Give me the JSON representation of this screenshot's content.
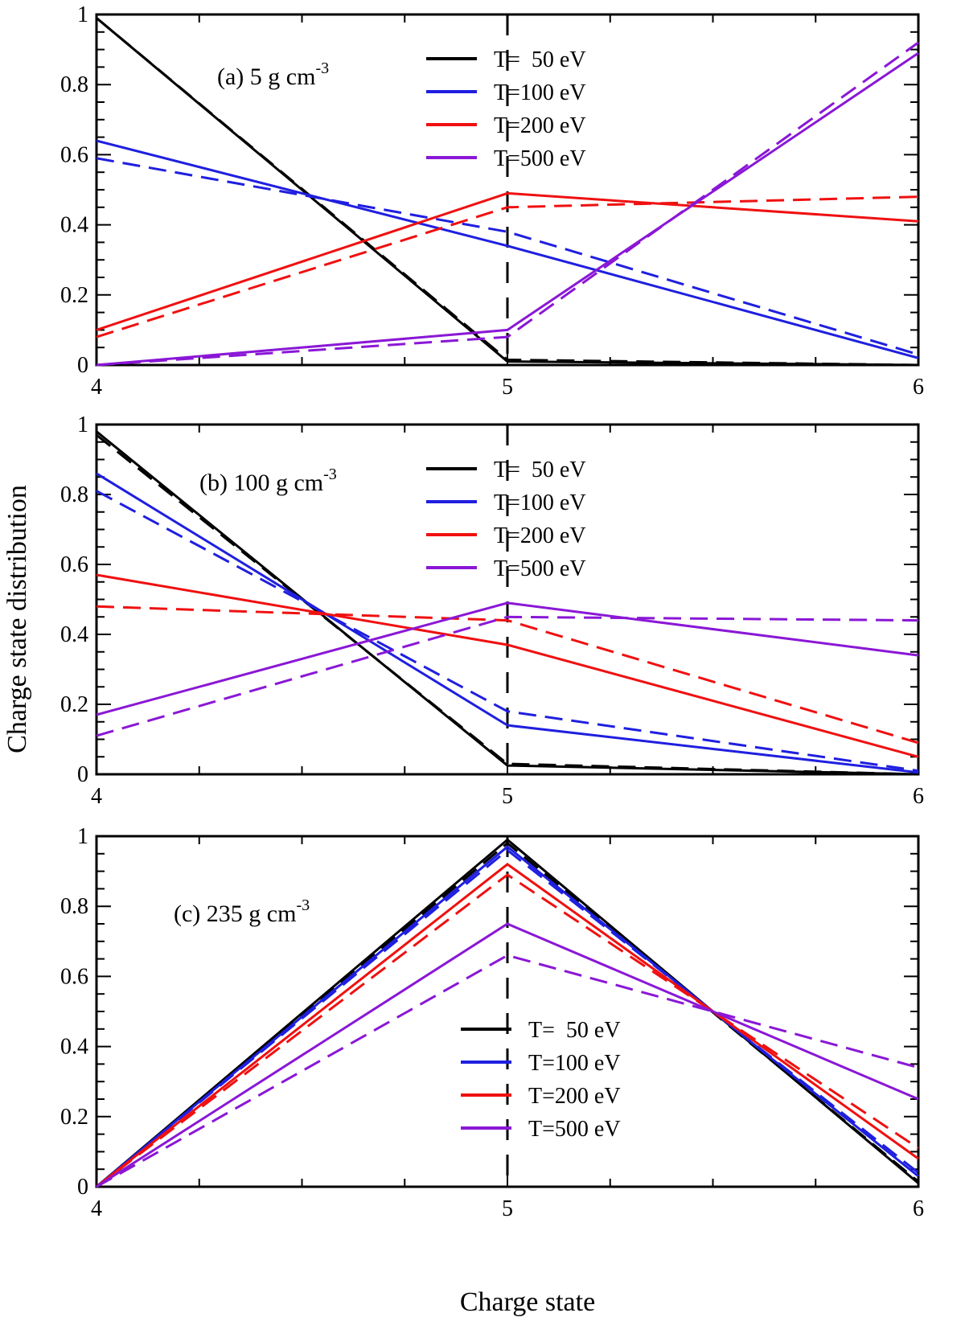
{
  "xlabel": "Charge state",
  "ylabel": "Charge state distribution",
  "colors": {
    "T=  50 eV": "#000000",
    "T=100 eV": "#1f1fe0",
    "T=200 eV": "#f01010",
    "T=500 eV": "#8a17d6"
  },
  "chart_data": [
    {
      "type": "line",
      "label_text": "(a) 5 g cm",
      "label_sup": "-3",
      "x": [
        4,
        5,
        6
      ],
      "xlim": [
        4,
        6
      ],
      "ylim": [
        0,
        1
      ],
      "xticks": [
        "4",
        "5",
        "6"
      ],
      "yticks": [
        "0",
        "0.2",
        "0.4",
        "0.6",
        "0.8",
        "1"
      ],
      "legend_position": "top-center",
      "series": [
        {
          "name": "T=  50 eV",
          "style": "solid",
          "values": [
            0.99,
            0.01,
            0.0
          ]
        },
        {
          "name": "T=  50 eV",
          "style": "dashed",
          "values": [
            0.99,
            0.015,
            0.0
          ]
        },
        {
          "name": "T=100 eV",
          "style": "solid",
          "values": [
            0.64,
            0.34,
            0.02
          ]
        },
        {
          "name": "T=100 eV",
          "style": "dashed",
          "values": [
            0.59,
            0.38,
            0.03
          ]
        },
        {
          "name": "T=200 eV",
          "style": "solid",
          "values": [
            0.1,
            0.49,
            0.41
          ]
        },
        {
          "name": "T=200 eV",
          "style": "dashed",
          "values": [
            0.08,
            0.45,
            0.48
          ]
        },
        {
          "name": "T=500 eV",
          "style": "solid",
          "values": [
            0.0,
            0.1,
            0.89
          ]
        },
        {
          "name": "T=500 eV",
          "style": "dashed",
          "values": [
            0.0,
            0.08,
            0.92
          ]
        }
      ]
    },
    {
      "type": "line",
      "label_text": "(b) 100 g cm",
      "label_sup": "-3",
      "x": [
        4,
        5,
        6
      ],
      "xlim": [
        4,
        6
      ],
      "ylim": [
        0,
        1
      ],
      "xticks": [
        "4",
        "5",
        "6"
      ],
      "yticks": [
        "0",
        "0.2",
        "0.4",
        "0.6",
        "0.8",
        "1"
      ],
      "legend_position": "top-center",
      "series": [
        {
          "name": "T=  50 eV",
          "style": "solid",
          "values": [
            0.98,
            0.025,
            0.0
          ]
        },
        {
          "name": "T=  50 eV",
          "style": "dashed",
          "values": [
            0.97,
            0.03,
            0.0
          ]
        },
        {
          "name": "T=100 eV",
          "style": "solid",
          "values": [
            0.86,
            0.14,
            0.005
          ]
        },
        {
          "name": "T=100 eV",
          "style": "dashed",
          "values": [
            0.81,
            0.18,
            0.01
          ]
        },
        {
          "name": "T=200 eV",
          "style": "solid",
          "values": [
            0.57,
            0.37,
            0.05
          ]
        },
        {
          "name": "T=200 eV",
          "style": "dashed",
          "values": [
            0.48,
            0.44,
            0.09
          ]
        },
        {
          "name": "T=500 eV",
          "style": "solid",
          "values": [
            0.17,
            0.49,
            0.34
          ]
        },
        {
          "name": "T=500 eV",
          "style": "dashed",
          "values": [
            0.11,
            0.45,
            0.44
          ]
        }
      ]
    },
    {
      "type": "line",
      "label_text": "(c) 235 g cm",
      "label_sup": "-3",
      "x": [
        4,
        5,
        6
      ],
      "xlim": [
        4,
        6
      ],
      "ylim": [
        0,
        1
      ],
      "xticks": [
        "4",
        "5",
        "6"
      ],
      "yticks": [
        "0",
        "0.2",
        "0.4",
        "0.6",
        "0.8",
        "1"
      ],
      "legend_position": "bottom-center",
      "series": [
        {
          "name": "T=  50 eV",
          "style": "solid",
          "values": [
            0.0,
            0.99,
            0.01
          ]
        },
        {
          "name": "T=  50 eV",
          "style": "dashed",
          "values": [
            0.0,
            0.98,
            0.015
          ]
        },
        {
          "name": "T=100 eV",
          "style": "solid",
          "values": [
            0.0,
            0.97,
            0.03
          ]
        },
        {
          "name": "T=100 eV",
          "style": "dashed",
          "values": [
            0.0,
            0.96,
            0.04
          ]
        },
        {
          "name": "T=200 eV",
          "style": "solid",
          "values": [
            0.0,
            0.92,
            0.08
          ]
        },
        {
          "name": "T=200 eV",
          "style": "dashed",
          "values": [
            0.0,
            0.89,
            0.11
          ]
        },
        {
          "name": "T=500 eV",
          "style": "solid",
          "values": [
            0.0,
            0.75,
            0.25
          ]
        },
        {
          "name": "T=500 eV",
          "style": "dashed",
          "values": [
            0.0,
            0.66,
            0.34
          ]
        }
      ]
    }
  ]
}
